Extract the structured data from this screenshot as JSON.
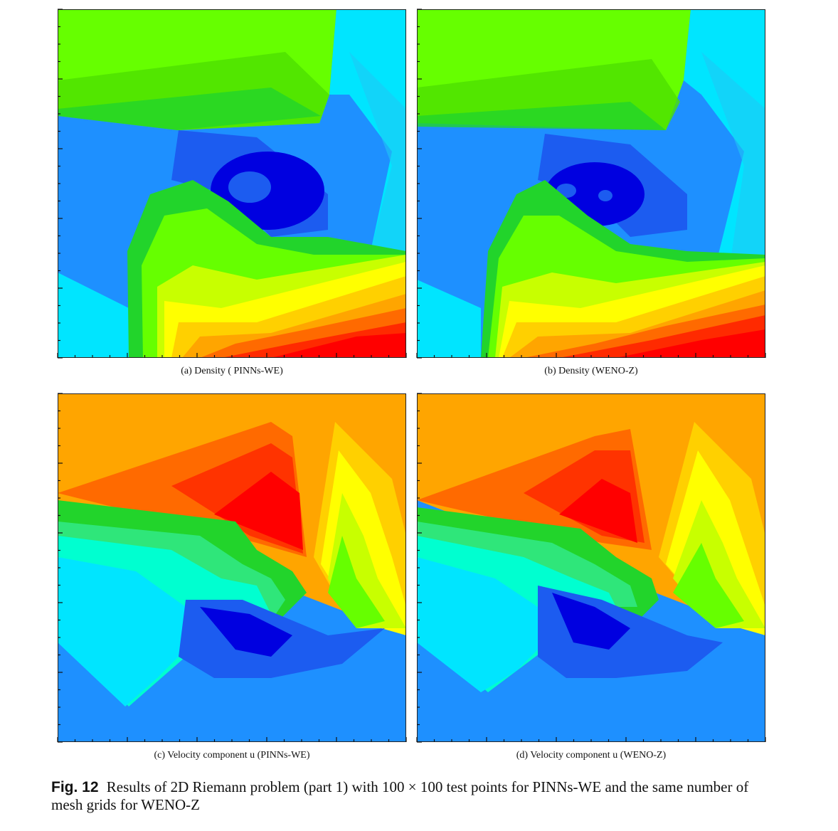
{
  "figure": {
    "label": "Fig. 12",
    "caption": "Results of 2D Riemann problem (part 1) with 100 × 100 test points for PINNs-WE and the same number of mesh grids for WENO-Z"
  },
  "panels": [
    {
      "id": "a",
      "caption": "(a) Density ( PINNs-WE)",
      "field": "density",
      "method": "PINNs-WE"
    },
    {
      "id": "b",
      "caption": "(b) Density (WENO-Z)",
      "field": "density",
      "method": "WENO-Z"
    },
    {
      "id": "c",
      "caption": "(c) Velocity component u (PINNs-WE)",
      "field": "velocity-u",
      "method": "PINNs-WE"
    },
    {
      "id": "d",
      "caption": "(d) Velocity component u (WENO-Z)",
      "field": "velocity-u",
      "method": "WENO-Z"
    }
  ],
  "colors": {
    "density_levels": [
      "#0000e0",
      "#1c5cf0",
      "#1e90ff",
      "#00e5ff",
      "#00ffd0",
      "#2fe67a",
      "#22d42b",
      "#66ff00",
      "#c8ff00",
      "#ffff00",
      "#ffd000",
      "#ffa500",
      "#ff6a00",
      "#ff2a00",
      "#ff0000"
    ],
    "velocity_levels": [
      "#1c5cf0",
      "#1e90ff",
      "#00e5ff",
      "#00ffd0",
      "#2fe67a",
      "#22d42b",
      "#66ff00",
      "#c8ff00",
      "#ffff00",
      "#ffd000",
      "#ffa500",
      "#ff6a00",
      "#ff3300",
      "#ff0000"
    ]
  }
}
